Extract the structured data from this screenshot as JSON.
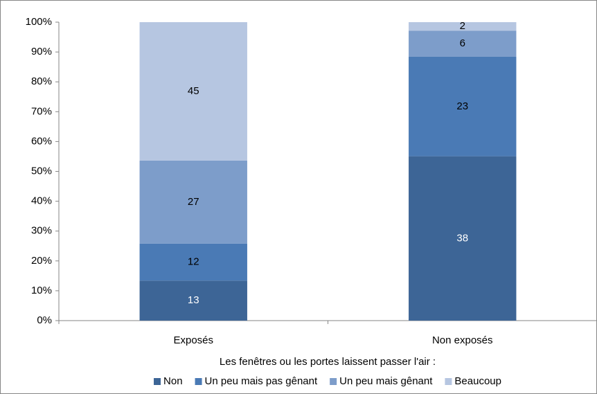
{
  "chart_data": {
    "type": "bar",
    "stacking": "percent",
    "x_axis_label": "Les fenêtres ou les portes laissent passer l'air :",
    "categories": [
      "Exposés",
      "Non exposés"
    ],
    "series": [
      {
        "name": "Non",
        "color": "#3d6596",
        "values": [
          13,
          38
        ]
      },
      {
        "name": "Un peu mais pas gênant",
        "color": "#4a7ab5",
        "values": [
          12,
          23
        ]
      },
      {
        "name": "Un peu mais gênant",
        "color": "#7d9dca",
        "values": [
          27,
          6
        ]
      },
      {
        "name": "Beaucoup",
        "color": "#b6c6e1",
        "values": [
          45,
          2
        ]
      }
    ],
    "ylim": [
      0,
      100
    ],
    "yticks": [
      {
        "value": 0,
        "label": "0%"
      },
      {
        "value": 10,
        "label": "10%"
      },
      {
        "value": 20,
        "label": "20%"
      },
      {
        "value": 30,
        "label": "30%"
      },
      {
        "value": 40,
        "label": "40%"
      },
      {
        "value": 50,
        "label": "50%"
      },
      {
        "value": 60,
        "label": "60%"
      },
      {
        "value": 70,
        "label": "70%"
      },
      {
        "value": 80,
        "label": "80%"
      },
      {
        "value": 90,
        "label": "90%"
      },
      {
        "value": 100,
        "label": "100%"
      }
    ],
    "legend": "bottom"
  }
}
